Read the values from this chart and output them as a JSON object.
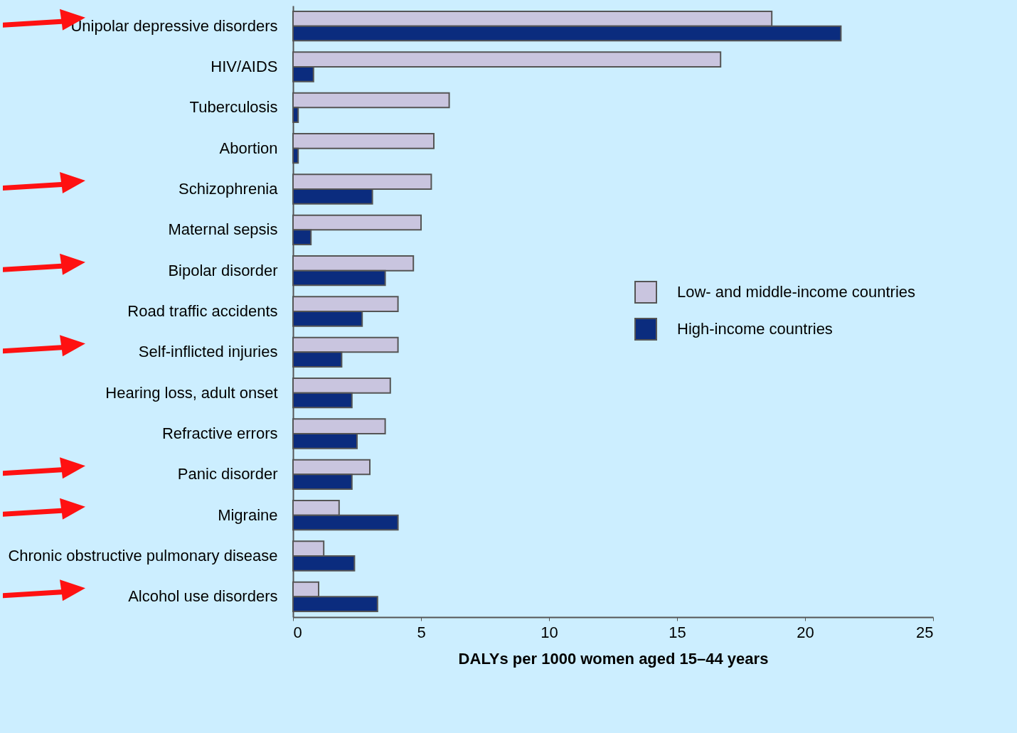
{
  "chart_data": {
    "type": "bar",
    "orientation": "horizontal",
    "xlabel": "DALYs per 1000 women aged 15–44 years",
    "categories": [
      "Unipolar depressive disorders",
      "HIV/AIDS",
      "Tuberculosis",
      "Abortion",
      "Schizophrenia",
      "Maternal sepsis",
      "Bipolar disorder",
      "Road traffic accidents",
      "Self-inflicted injuries",
      "Hearing loss, adult onset",
      "Refractive errors",
      "Panic disorder",
      "Migraine",
      "Chronic obstructive pulmonary disease",
      "Alcohol use disorders"
    ],
    "series": [
      {
        "name": "Low- and middle-income countries",
        "color": "#c9c5df",
        "values": [
          18.7,
          16.7,
          6.1,
          5.5,
          5.4,
          5.0,
          4.7,
          4.1,
          4.1,
          3.8,
          3.6,
          3.0,
          1.8,
          1.2,
          1.0
        ]
      },
      {
        "name": "High-income countries",
        "color": "#0b2c7e",
        "values": [
          21.4,
          0.8,
          0.2,
          0.2,
          3.1,
          0.7,
          3.6,
          2.7,
          1.9,
          2.3,
          2.5,
          2.3,
          4.1,
          2.4,
          3.3
        ]
      }
    ],
    "xlim": [
      0,
      25
    ],
    "xticks": [
      0,
      5,
      10,
      15,
      20,
      25
    ],
    "grid": false,
    "legend": "right"
  }
}
